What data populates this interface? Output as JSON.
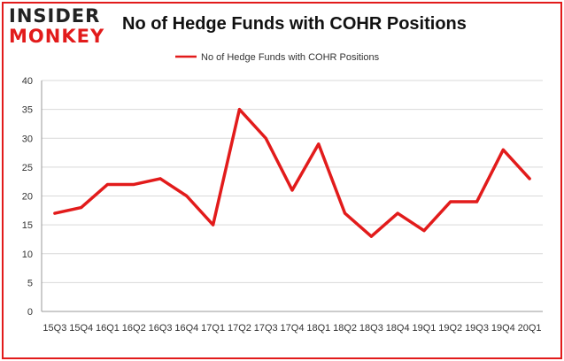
{
  "logo": {
    "line1": "INSIDER",
    "line2": "MONKEY"
  },
  "colors": {
    "accent": "#e21b1b",
    "grid": "#d9d9d9",
    "axis": "#999999"
  },
  "chart_data": {
    "type": "line",
    "title": "No of Hedge Funds with COHR Positions",
    "xlabel": "",
    "ylabel": "",
    "legend": "top-center",
    "grid": true,
    "ylim": [
      0,
      40
    ],
    "yticks": [
      0,
      5,
      10,
      15,
      20,
      25,
      30,
      35,
      40
    ],
    "categories": [
      "15Q3",
      "15Q4",
      "16Q1",
      "16Q2",
      "16Q3",
      "16Q4",
      "17Q1",
      "17Q2",
      "17Q3",
      "17Q4",
      "18Q1",
      "18Q2",
      "18Q3",
      "18Q4",
      "19Q1",
      "19Q2",
      "19Q3",
      "19Q4",
      "20Q1"
    ],
    "series": [
      {
        "name": "No of Hedge Funds with COHR Positions",
        "values": [
          17,
          18,
          22,
          22,
          23,
          20,
          15,
          35,
          30,
          21,
          29,
          17,
          13,
          17,
          14,
          19,
          19,
          28,
          23
        ]
      }
    ]
  }
}
